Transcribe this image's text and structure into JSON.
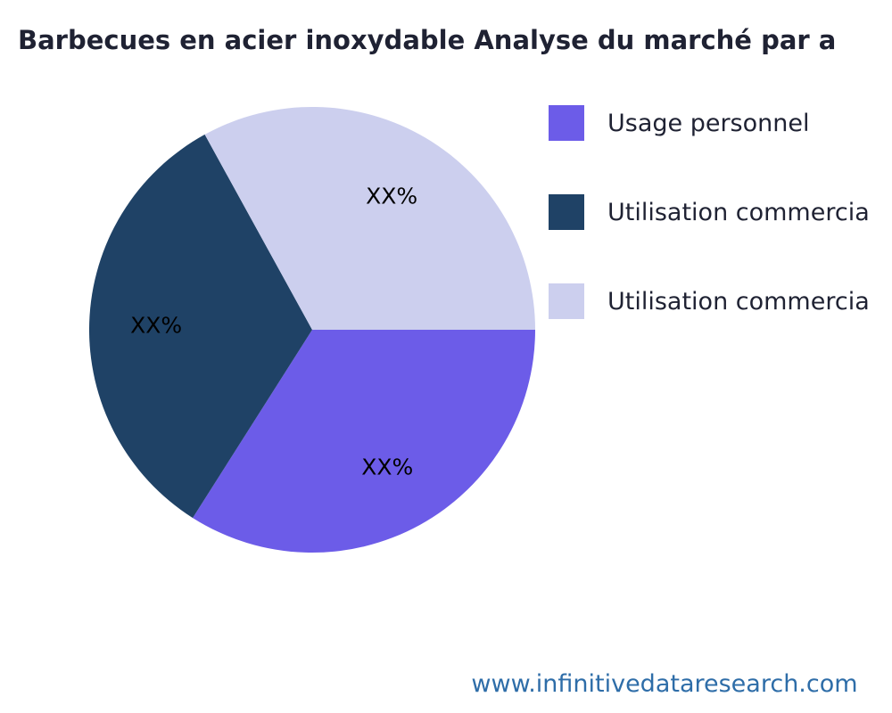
{
  "page": {
    "title": "Barbecues en acier inoxydable Analyse du marché par a",
    "footer_url": "www.infinitivedataresearch.com"
  },
  "chart_data": {
    "type": "pie",
    "title": "Barbecues en acier inoxydable Analyse du marché par a",
    "legend_position": "right",
    "start_angle_deg": 0,
    "direction": "clockwise",
    "slices": [
      {
        "label": "Usage personnel",
        "value": 34,
        "display_label": "XX%",
        "color": "#6c5ce8"
      },
      {
        "label": "Utilisation commercia",
        "value": 33,
        "display_label": "XX%",
        "color": "#1f4266"
      },
      {
        "label": "Utilisation commercia",
        "value": 33,
        "display_label": "XX%",
        "color": "#cccfee"
      }
    ],
    "source": "www.infinitivedataresearch.com"
  }
}
